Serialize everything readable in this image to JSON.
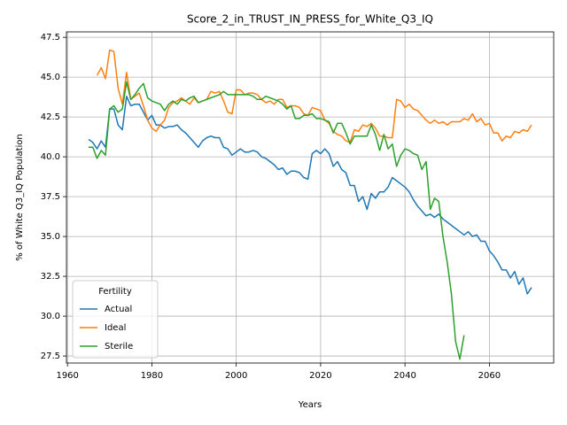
{
  "chart_data": {
    "type": "line",
    "title": "Score_2_in_TRUST_IN_PRESS_for_White_Q3_IQ",
    "xlabel": "Years",
    "ylabel": "% of White Q3_IQ Population",
    "legend_title": "Fertility",
    "legend": "lower left",
    "grid": true,
    "xlim": [
      1959.75,
      2075.25
    ],
    "ylim": [
      27.06,
      47.84
    ],
    "xticks": [
      1960,
      1980,
      2000,
      2020,
      2040,
      2060
    ],
    "yticks": [
      27.5,
      {
        "value": 30,
        "label": "30.0"
      },
      32.5,
      {
        "value": 35,
        "label": "35.0"
      },
      37.5,
      {
        "value": 40,
        "label": "40.0"
      },
      42.5,
      {
        "value": 45,
        "label": "45.0"
      },
      47.5
    ],
    "x": [
      1965,
      1966,
      1967,
      1968,
      1969,
      1970,
      1971,
      1972,
      1973,
      1974,
      1975,
      1976,
      1977,
      1978,
      1979,
      1980,
      1981,
      1982,
      1983,
      1984,
      1985,
      1986,
      1987,
      1988,
      1989,
      1990,
      1991,
      1992,
      1993,
      1994,
      1995,
      1996,
      1997,
      1998,
      1999,
      2000,
      2001,
      2002,
      2003,
      2004,
      2005,
      2006,
      2007,
      2008,
      2009,
      2010,
      2011,
      2012,
      2013,
      2014,
      2015,
      2016,
      2017,
      2018,
      2019,
      2020,
      2021,
      2022,
      2023,
      2024,
      2025,
      2026,
      2027,
      2028,
      2029,
      2030,
      2031,
      2032,
      2033,
      2034,
      2035,
      2036,
      2037,
      2038,
      2039,
      2040,
      2041,
      2042,
      2043,
      2044,
      2045,
      2046,
      2047,
      2048,
      2049,
      2050,
      2051,
      2052,
      2053,
      2054,
      2055,
      2056,
      2057,
      2058,
      2059,
      2060,
      2061,
      2062,
      2063,
      2064,
      2065,
      2066,
      2067,
      2068,
      2069,
      2070
    ],
    "series": [
      {
        "name": "Actual",
        "color": "#1f77b4",
        "values": [
          41.1,
          40.9,
          40.5,
          41.0,
          40.6,
          43.0,
          43.0,
          42.0,
          41.7,
          43.8,
          43.2,
          43.3,
          43.3,
          42.8,
          42.3,
          42.6,
          42.0,
          42.0,
          41.8,
          41.9,
          41.9,
          42.0,
          41.7,
          41.5,
          41.2,
          40.9,
          40.6,
          41.0,
          41.2,
          41.3,
          41.2,
          41.2,
          40.6,
          40.5,
          40.1,
          40.3,
          40.5,
          40.3,
          40.3,
          40.4,
          40.3,
          40.0,
          39.9,
          39.7,
          39.5,
          39.2,
          39.3,
          38.9,
          39.1,
          39.1,
          39.0,
          38.7,
          38.6,
          40.2,
          40.4,
          40.2,
          40.5,
          40.2,
          39.4,
          39.7,
          39.2,
          39.0,
          38.2,
          38.2,
          37.2,
          37.5,
          36.7,
          37.7,
          37.4,
          37.8,
          37.8,
          38.1,
          38.7,
          38.5,
          38.3,
          38.1,
          37.8,
          37.3,
          36.9,
          36.6,
          36.3,
          36.4,
          36.2,
          36.4,
          36.1,
          35.9,
          35.7,
          35.5,
          35.3,
          35.1,
          35.3,
          35.0,
          35.1,
          34.7,
          34.7,
          34.1,
          33.8,
          33.4,
          32.9,
          32.9,
          32.4,
          32.8,
          32.0,
          32.4,
          31.4,
          31.8
        ]
      },
      {
        "name": "Ideal",
        "color": "#ff7f0e",
        "values": [
          null,
          null,
          45.1,
          45.6,
          44.9,
          46.7,
          46.6,
          44.3,
          43.3,
          45.3,
          43.6,
          43.8,
          44.0,
          43.2,
          42.3,
          41.8,
          41.6,
          42.0,
          42.3,
          43.1,
          43.4,
          43.5,
          43.7,
          43.5,
          43.3,
          43.7,
          43.4,
          43.5,
          43.6,
          44.1,
          44.0,
          44.1,
          43.5,
          42.8,
          42.7,
          44.2,
          44.2,
          43.9,
          44.0,
          44.0,
          43.9,
          43.6,
          43.4,
          43.5,
          43.3,
          43.6,
          43.6,
          43.1,
          43.2,
          43.2,
          43.1,
          42.7,
          42.6,
          43.1,
          43.0,
          42.9,
          42.3,
          42.1,
          41.6,
          41.4,
          41.3,
          41.0,
          40.9,
          41.7,
          41.6,
          42.0,
          41.9,
          42.1,
          41.8,
          41.3,
          41.3,
          41.2,
          41.2,
          43.6,
          43.5,
          43.1,
          43.3,
          43.0,
          42.9,
          42.6,
          42.3,
          42.1,
          42.3,
          42.1,
          42.2,
          42.0,
          42.2,
          42.2,
          42.2,
          42.4,
          42.3,
          42.7,
          42.2,
          42.4,
          42.0,
          42.1,
          41.5,
          41.5,
          41.0,
          41.3,
          41.2,
          41.6,
          41.5,
          41.7,
          41.6,
          42.0
        ]
      },
      {
        "name": "Sterile",
        "color": "#2ca02c",
        "values": [
          40.6,
          40.6,
          39.9,
          40.4,
          40.1,
          43.0,
          43.2,
          42.8,
          43.0,
          44.7,
          43.6,
          43.9,
          44.3,
          44.6,
          43.7,
          43.5,
          43.4,
          43.3,
          42.9,
          43.3,
          43.5,
          43.3,
          43.6,
          43.5,
          43.7,
          43.8,
          43.4,
          43.5,
          43.6,
          43.7,
          43.8,
          43.9,
          44.1,
          43.9,
          43.9,
          43.9,
          43.9,
          43.9,
          43.9,
          43.8,
          43.6,
          43.6,
          43.8,
          43.7,
          43.6,
          43.5,
          43.3,
          43.0,
          43.2,
          42.4,
          42.4,
          42.6,
          42.6,
          42.7,
          42.4,
          42.4,
          42.3,
          42.2,
          41.5,
          42.1,
          42.1,
          41.5,
          40.8,
          41.3,
          41.3,
          41.3,
          41.3,
          42.0,
          41.4,
          40.4,
          41.4,
          40.5,
          40.8,
          39.4,
          40.1,
          40.5,
          40.4,
          40.2,
          40.1,
          39.2,
          39.7,
          36.7,
          37.4,
          37.2,
          35.0,
          33.4,
          31.4,
          28.4,
          27.3,
          28.8,
          null,
          null,
          null,
          null,
          null,
          null,
          null,
          null,
          null,
          null,
          null,
          null,
          null,
          null,
          null,
          null
        ]
      }
    ]
  }
}
